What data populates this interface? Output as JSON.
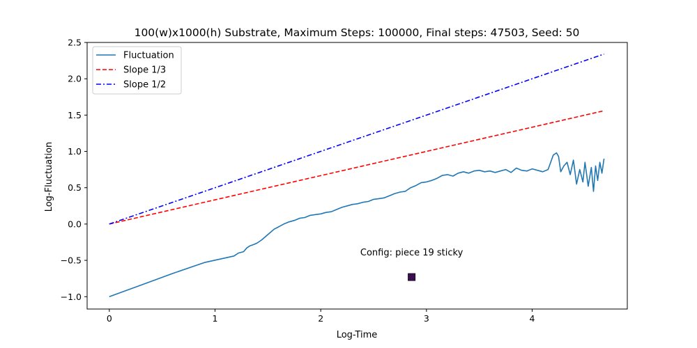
{
  "chart_data": {
    "type": "line",
    "title": "100(w)x1000(h) Substrate, Maximum Steps: 100000, Final steps: 47503, Seed: 50",
    "xlabel": "Log-Time",
    "ylabel": "Log-Fluctuation",
    "xlim": [
      -0.21,
      4.9
    ],
    "ylim": [
      -1.17,
      2.5
    ],
    "xticks": [
      0,
      1,
      2,
      3,
      4
    ],
    "xtick_labels": [
      "0",
      "1",
      "2",
      "3",
      "4"
    ],
    "yticks": [
      -1.0,
      -0.5,
      0.0,
      0.5,
      1.0,
      1.5,
      2.0,
      2.5
    ],
    "ytick_labels": [
      "−1.0",
      "−0.5",
      "0.0",
      "0.5",
      "1.0",
      "1.5",
      "2.0",
      "2.5"
    ],
    "grid": false,
    "legend_position": "top-left",
    "series": [
      {
        "name": "Fluctuation",
        "color": "#1f77b4",
        "dash": "solid",
        "x": [
          0,
          0.3,
          0.6,
          0.9,
          1.18,
          1.22,
          1.27,
          1.3,
          1.33,
          1.37,
          1.4,
          1.44,
          1.48,
          1.52,
          1.56,
          1.6,
          1.65,
          1.7,
          1.75,
          1.8,
          1.85,
          1.9,
          1.95,
          2.0,
          2.05,
          2.1,
          2.15,
          2.2,
          2.25,
          2.3,
          2.35,
          2.4,
          2.45,
          2.5,
          2.55,
          2.6,
          2.65,
          2.7,
          2.75,
          2.8,
          2.85,
          2.9,
          2.95,
          3.0,
          3.05,
          3.1,
          3.15,
          3.2,
          3.25,
          3.3,
          3.35,
          3.4,
          3.45,
          3.5,
          3.55,
          3.6,
          3.65,
          3.7,
          3.75,
          3.8,
          3.85,
          3.9,
          3.95,
          4.0,
          4.05,
          4.1,
          4.15,
          4.2,
          4.23,
          4.25,
          4.27,
          4.3,
          4.33,
          4.36,
          4.39,
          4.42,
          4.45,
          4.48,
          4.5,
          4.53,
          4.56,
          4.58,
          4.6,
          4.62,
          4.64,
          4.66,
          4.68
        ],
        "y": [
          -1.0,
          -0.84,
          -0.68,
          -0.53,
          -0.44,
          -0.4,
          -0.38,
          -0.33,
          -0.3,
          -0.28,
          -0.26,
          -0.22,
          -0.17,
          -0.12,
          -0.07,
          -0.04,
          0.0,
          0.03,
          0.05,
          0.08,
          0.09,
          0.12,
          0.13,
          0.14,
          0.16,
          0.17,
          0.2,
          0.23,
          0.25,
          0.27,
          0.28,
          0.3,
          0.31,
          0.34,
          0.35,
          0.36,
          0.39,
          0.42,
          0.44,
          0.45,
          0.5,
          0.53,
          0.57,
          0.58,
          0.6,
          0.63,
          0.67,
          0.68,
          0.66,
          0.7,
          0.72,
          0.7,
          0.73,
          0.74,
          0.72,
          0.73,
          0.71,
          0.73,
          0.75,
          0.71,
          0.77,
          0.74,
          0.73,
          0.76,
          0.74,
          0.72,
          0.75,
          0.95,
          0.98,
          0.93,
          0.72,
          0.8,
          0.85,
          0.68,
          0.88,
          0.55,
          0.75,
          0.58,
          0.85,
          0.52,
          0.78,
          0.45,
          0.8,
          0.6,
          0.85,
          0.7,
          0.9
        ]
      },
      {
        "name": "Slope 1/3",
        "color": "#ff0000",
        "dash": "dashed",
        "x": [
          0,
          4.68
        ],
        "y": [
          0,
          1.56
        ]
      },
      {
        "name": "Slope 1/2",
        "color": "#0000ff",
        "dash": "dashdot",
        "x": [
          0,
          4.68
        ],
        "y": [
          0,
          2.34
        ]
      }
    ],
    "annotation": {
      "text": "Config:  piece 19 sticky",
      "x": 2.86,
      "y": -0.43
    },
    "marker": {
      "x": 2.86,
      "y": -0.73,
      "color": "#3b0f4f"
    }
  }
}
